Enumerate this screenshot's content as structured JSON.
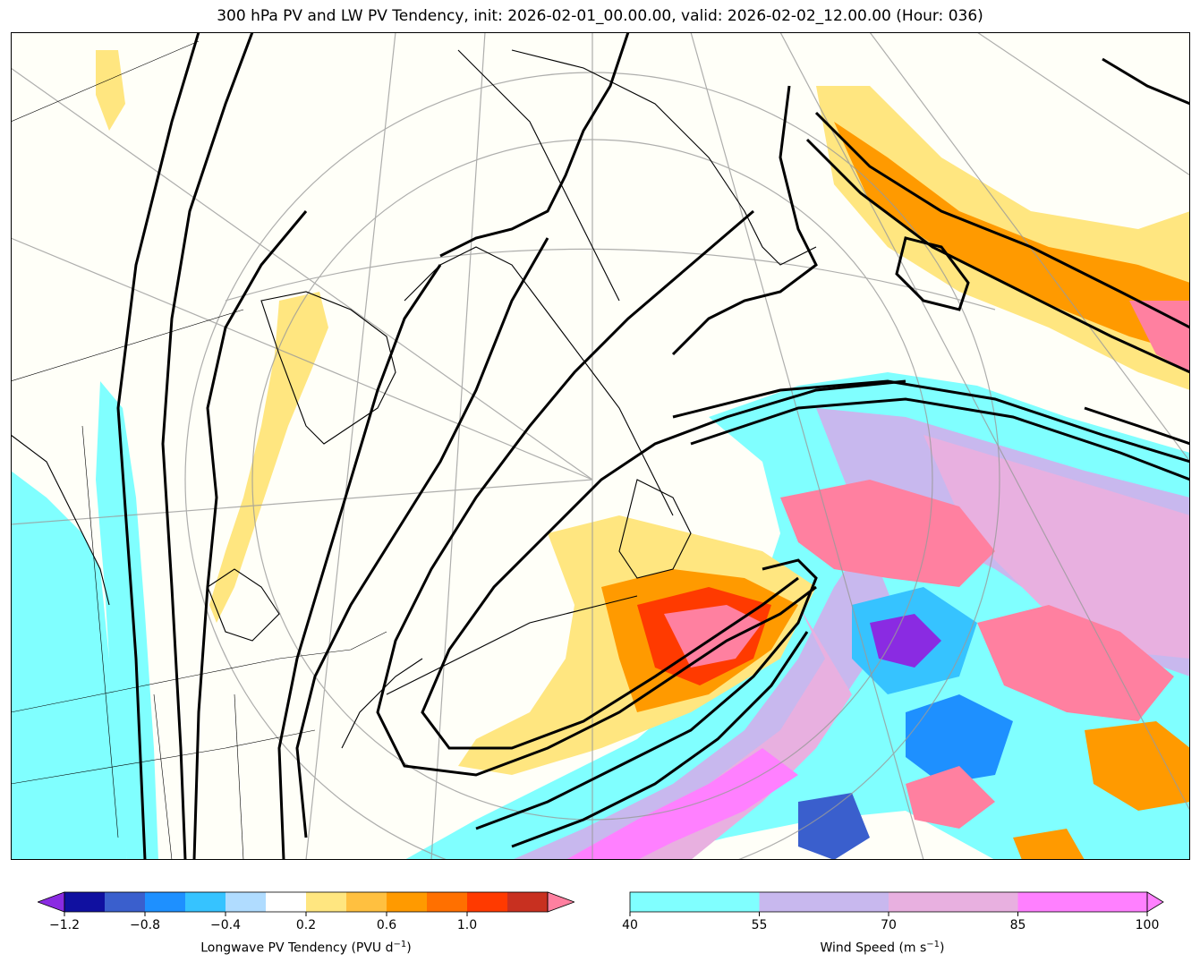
{
  "title": "300 hPa PV and LW PV Tendency, init: 2026-02-01_00.00.00, valid: 2026-02-02_12.00.00 (Hour: 036)",
  "colors": {
    "background": "#fffff8",
    "coast": "#000000",
    "grid": "#9a9a9a",
    "pv_contour": "#000000"
  },
  "legend": {
    "pv_tendency": {
      "label": "Longwave PV Tendency (PVU d",
      "label_exp": "−1",
      "label_tail": ")",
      "ticks": [
        "−1.2",
        "−0.8",
        "−0.4",
        "0.2",
        "0.6",
        "1.0"
      ],
      "colors": [
        "#8a2be2",
        "#1010a0",
        "#3a5fcd",
        "#1e90ff",
        "#36c3ff",
        "#b0dcff",
        "#ffffff",
        "#ffe680",
        "#ffc040",
        "#ff9a00",
        "#ff7000",
        "#ff3a00",
        "#c83020",
        "#ff80a0"
      ]
    },
    "wind_speed": {
      "label": "Wind Speed (m s",
      "label_exp": "−1",
      "label_tail": ")",
      "ticks": [
        "40",
        "55",
        "70",
        "85",
        "100"
      ],
      "colors": [
        "#80ffff",
        "#c8b8ee",
        "#e8b0e0",
        "#ff80ff"
      ]
    }
  }
}
